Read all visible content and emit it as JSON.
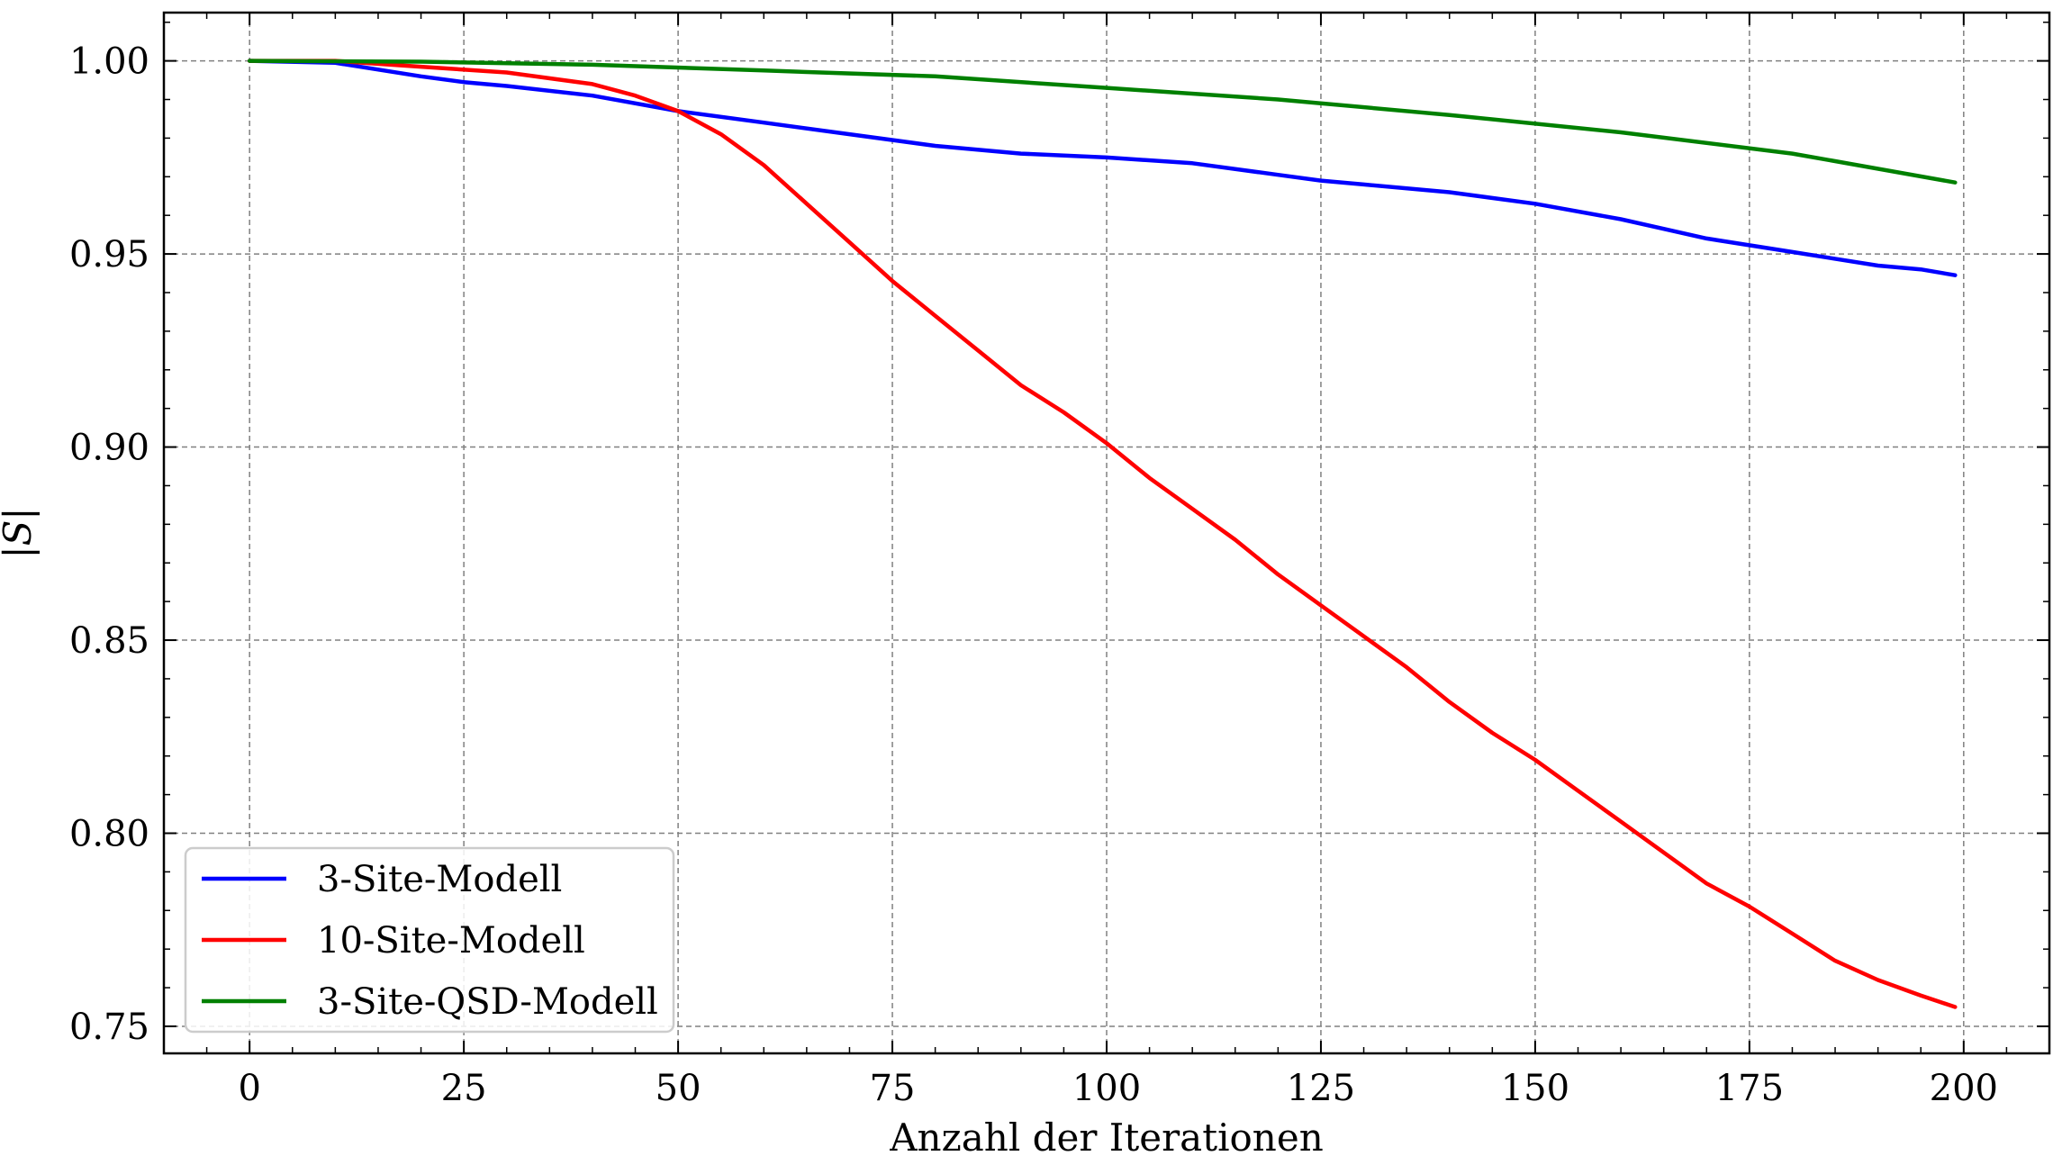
{
  "chart_data": {
    "type": "line",
    "title": "",
    "xlabel": "Anzahl der Iterationen",
    "ylabel": "|S|",
    "xlim": [
      -10,
      210
    ],
    "ylim": [
      0.743,
      1.0125
    ],
    "xticks": [
      0,
      25,
      50,
      75,
      100,
      125,
      150,
      175,
      200
    ],
    "xtick_labels": [
      "0",
      "25",
      "50",
      "75",
      "100",
      "125",
      "150",
      "175",
      "200"
    ],
    "yticks": [
      0.75,
      0.8,
      0.85,
      0.9,
      0.95,
      1.0
    ],
    "ytick_labels": [
      "0.75",
      "0.80",
      "0.85",
      "0.90",
      "0.95",
      "1.00"
    ],
    "grid": true,
    "legend_position": "lower-left",
    "series": [
      {
        "name": "3-Site-Modell",
        "color": "#0000ff",
        "x": [
          0,
          10,
          20,
          25,
          30,
          40,
          50,
          60,
          70,
          80,
          90,
          100,
          110,
          120,
          125,
          130,
          140,
          150,
          160,
          170,
          180,
          190,
          195,
          199
        ],
        "y": [
          1.0,
          0.9995,
          0.996,
          0.9945,
          0.9935,
          0.991,
          0.987,
          0.984,
          0.981,
          0.978,
          0.976,
          0.975,
          0.9735,
          0.9705,
          0.969,
          0.968,
          0.966,
          0.963,
          0.959,
          0.954,
          0.9505,
          0.947,
          0.946,
          0.9445
        ]
      },
      {
        "name": "10-Site-Modell",
        "color": "#ff0000",
        "x": [
          0,
          10,
          20,
          30,
          40,
          45,
          50,
          55,
          60,
          65,
          70,
          75,
          80,
          85,
          90,
          95,
          100,
          105,
          110,
          115,
          120,
          125,
          130,
          135,
          140,
          145,
          150,
          155,
          160,
          165,
          170,
          175,
          180,
          185,
          190,
          195,
          199
        ],
        "y": [
          1.0,
          1.0,
          0.9985,
          0.997,
          0.994,
          0.991,
          0.987,
          0.981,
          0.973,
          0.963,
          0.953,
          0.943,
          0.934,
          0.925,
          0.916,
          0.909,
          0.901,
          0.892,
          0.884,
          0.876,
          0.867,
          0.859,
          0.851,
          0.843,
          0.834,
          0.826,
          0.819,
          0.811,
          0.803,
          0.795,
          0.787,
          0.781,
          0.774,
          0.767,
          0.762,
          0.758,
          0.755
        ]
      },
      {
        "name": "3-Site-QSD-Modell",
        "color": "#008000",
        "x": [
          0,
          20,
          40,
          60,
          80,
          100,
          120,
          140,
          160,
          180,
          199
        ],
        "y": [
          1.0,
          0.9998,
          0.999,
          0.9975,
          0.996,
          0.993,
          0.99,
          0.986,
          0.9815,
          0.976,
          0.9685
        ]
      }
    ]
  }
}
